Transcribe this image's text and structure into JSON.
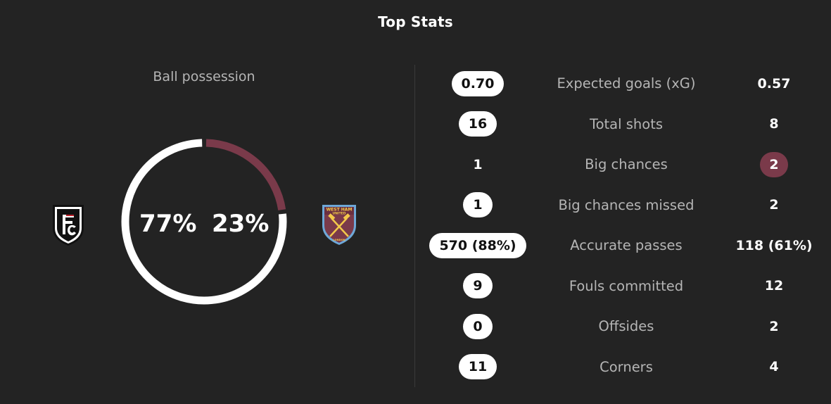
{
  "title": "Top Stats",
  "possession": {
    "label": "Ball possession",
    "home_pct": "77%",
    "away_pct": "23%",
    "home_value": 77,
    "away_value": 23,
    "home_color": "#ffffff",
    "away_color": "#7a3a4a"
  },
  "teams": {
    "home": {
      "crest_icon": "fulham-crest-icon"
    },
    "away": {
      "crest_icon": "west-ham-crest-icon",
      "crest_text_top": "WEST HAM",
      "crest_text_mid": "UNITED",
      "crest_text_bottom": "LONDON"
    }
  },
  "stats": [
    {
      "label": "Expected goals (xG)",
      "home": "0.70",
      "away": "0.57",
      "highlight": "home"
    },
    {
      "label": "Total shots",
      "home": "16",
      "away": "8",
      "highlight": "home"
    },
    {
      "label": "Big chances",
      "home": "1",
      "away": "2",
      "highlight": "away"
    },
    {
      "label": "Big chances missed",
      "home": "1",
      "away": "2",
      "highlight": "home"
    },
    {
      "label": "Accurate passes",
      "home": "570 (88%)",
      "away": "118 (61%)",
      "highlight": "home"
    },
    {
      "label": "Fouls committed",
      "home": "9",
      "away": "12",
      "highlight": "home"
    },
    {
      "label": "Offsides",
      "home": "0",
      "away": "2",
      "highlight": "home"
    },
    {
      "label": "Corners",
      "home": "11",
      "away": "4",
      "highlight": "home"
    }
  ],
  "colors": {
    "background": "#232323",
    "home_highlight": "#ffffff",
    "away_highlight": "#7a3a4a",
    "label_text": "#b5b5b5"
  }
}
